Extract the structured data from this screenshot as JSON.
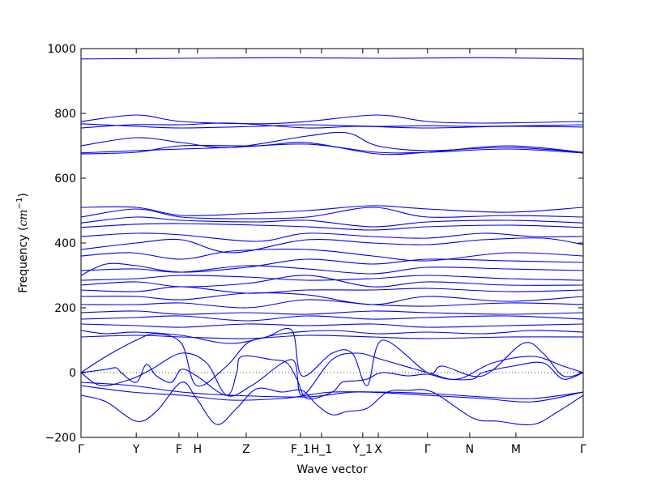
{
  "chart_data": {
    "type": "line",
    "xlabel": "Wave vector",
    "ylabel_prefix": "Frequency (",
    "ylabel_unit": "cm",
    "ylabel_exponent": "−1",
    "ylabel_suffix": ")",
    "ylim": [
      -200,
      1000
    ],
    "yticks": [
      "1000",
      "800",
      "600",
      "400",
      "200",
      "0",
      "−200"
    ],
    "ytick_values": [
      1000,
      800,
      600,
      400,
      200,
      0,
      -200
    ],
    "xlim": [
      0,
      1
    ],
    "xticks": [
      {
        "label": "Γ",
        "x": 0.0
      },
      {
        "label": "Y",
        "x": 0.11
      },
      {
        "label": "F",
        "x": 0.195
      },
      {
        "label": "H",
        "x": 0.232
      },
      {
        "label": "Z",
        "x": 0.329
      },
      {
        "label": "F_1",
        "x": 0.437
      },
      {
        "label": "H_1",
        "x": 0.479
      },
      {
        "label": "Y_1",
        "x": 0.561
      },
      {
        "label": "X",
        "x": 0.592
      },
      {
        "label": "Γ",
        "x": 0.69
      },
      {
        "label": "N",
        "x": 0.774
      },
      {
        "label": "M",
        "x": 0.866
      },
      {
        "label": "Γ",
        "x": 1.0
      }
    ],
    "zero_line": true,
    "line_color": "#0000ee",
    "series": [
      {
        "x": [
          0,
          0.2,
          0.4,
          0.6,
          0.8,
          1.0
        ],
        "values": [
          968,
          970,
          972,
          970,
          972,
          968
        ]
      },
      {
        "x": [
          0,
          0.11,
          0.2,
          0.35,
          0.45,
          0.59,
          0.69,
          0.8,
          1.0
        ],
        "values": [
          775,
          795,
          775,
          768,
          775,
          795,
          775,
          770,
          775
        ]
      },
      {
        "x": [
          0,
          0.11,
          0.2,
          0.35,
          0.45,
          0.59,
          0.69,
          0.8,
          1.0
        ],
        "values": [
          768,
          760,
          755,
          760,
          765,
          760,
          762,
          760,
          765
        ]
      },
      {
        "x": [
          0,
          0.1,
          0.2,
          0.3,
          0.45,
          0.55,
          0.69,
          0.85,
          1.0
        ],
        "values": [
          755,
          765,
          765,
          770,
          755,
          760,
          755,
          760,
          758
        ]
      },
      {
        "x": [
          0,
          0.11,
          0.2,
          0.3,
          0.45,
          0.53,
          0.59,
          0.69,
          0.85,
          1.0
        ],
        "values": [
          700,
          725,
          710,
          695,
          730,
          740,
          700,
          685,
          695,
          680
        ]
      },
      {
        "x": [
          0,
          0.11,
          0.2,
          0.3,
          0.45,
          0.59,
          0.69,
          0.85,
          1.0
        ],
        "values": [
          678,
          685,
          690,
          695,
          705,
          680,
          680,
          690,
          678
        ]
      },
      {
        "x": [
          0,
          0.11,
          0.2,
          0.35,
          0.45,
          0.59,
          0.69,
          0.85,
          1.0
        ],
        "values": [
          675,
          680,
          700,
          700,
          710,
          675,
          680,
          700,
          680
        ]
      },
      {
        "x": [
          0,
          0.11,
          0.2,
          0.32,
          0.45,
          0.58,
          0.69,
          0.85,
          1.0
        ],
        "values": [
          510,
          510,
          485,
          490,
          500,
          515,
          505,
          495,
          510
        ]
      },
      {
        "x": [
          0,
          0.11,
          0.2,
          0.32,
          0.45,
          0.58,
          0.69,
          0.85,
          1.0
        ],
        "values": [
          480,
          505,
          480,
          475,
          480,
          510,
          480,
          485,
          480
        ]
      },
      {
        "x": [
          0,
          0.11,
          0.2,
          0.35,
          0.45,
          0.58,
          0.69,
          0.85,
          1.0
        ],
        "values": [
          462,
          480,
          470,
          465,
          470,
          450,
          465,
          470,
          462
        ]
      },
      {
        "x": [
          0,
          0.11,
          0.2,
          0.35,
          0.45,
          0.58,
          0.69,
          0.85,
          1.0
        ],
        "values": [
          448,
          458,
          460,
          455,
          450,
          440,
          450,
          455,
          448
        ]
      },
      {
        "x": [
          0,
          0.11,
          0.2,
          0.35,
          0.45,
          0.58,
          0.69,
          0.8,
          0.9,
          1.0
        ],
        "values": [
          420,
          430,
          425,
          405,
          430,
          420,
          415,
          430,
          420,
          420
        ]
      },
      {
        "x": [
          0,
          0.11,
          0.2,
          0.3,
          0.45,
          0.58,
          0.69,
          0.8,
          0.92,
          1.0
        ],
        "values": [
          380,
          400,
          410,
          370,
          410,
          400,
          395,
          410,
          415,
          395
        ]
      },
      {
        "x": [
          0,
          0.1,
          0.2,
          0.3,
          0.45,
          0.58,
          0.69,
          0.85,
          1.0
        ],
        "values": [
          360,
          370,
          350,
          375,
          380,
          360,
          345,
          370,
          360
        ]
      },
      {
        "x": [
          0,
          0.05,
          0.11,
          0.2,
          0.33,
          0.45,
          0.58,
          0.69,
          0.85,
          1.0
        ],
        "values": [
          300,
          335,
          330,
          310,
          325,
          350,
          335,
          350,
          345,
          340
        ]
      },
      {
        "x": [
          0,
          0.11,
          0.2,
          0.33,
          0.45,
          0.58,
          0.69,
          0.85,
          1.0
        ],
        "values": [
          315,
          320,
          310,
          330,
          320,
          305,
          325,
          320,
          315
        ]
      },
      {
        "x": [
          0,
          0.11,
          0.2,
          0.33,
          0.45,
          0.58,
          0.69,
          0.85,
          1.0
        ],
        "values": [
          285,
          290,
          300,
          295,
          285,
          290,
          300,
          290,
          285
        ]
      },
      {
        "x": [
          0,
          0.11,
          0.2,
          0.33,
          0.45,
          0.58,
          0.69,
          0.85,
          1.0
        ],
        "values": [
          270,
          280,
          265,
          275,
          300,
          265,
          280,
          270,
          270
        ]
      },
      {
        "x": [
          0,
          0.11,
          0.2,
          0.33,
          0.45,
          0.58,
          0.69,
          0.85,
          1.0
        ],
        "values": [
          255,
          250,
          265,
          245,
          255,
          255,
          260,
          250,
          255
        ]
      },
      {
        "x": [
          0,
          0.11,
          0.2,
          0.33,
          0.45,
          0.58,
          0.69,
          0.85,
          1.0
        ],
        "values": [
          235,
          235,
          225,
          245,
          240,
          210,
          235,
          220,
          235
        ]
      },
      {
        "x": [
          0,
          0.11,
          0.2,
          0.33,
          0.45,
          0.58,
          0.69,
          0.85,
          1.0
        ],
        "values": [
          210,
          210,
          215,
          200,
          225,
          210,
          205,
          215,
          210
        ]
      },
      {
        "x": [
          0,
          0.11,
          0.2,
          0.33,
          0.45,
          0.58,
          0.69,
          0.85,
          1.0
        ],
        "values": [
          185,
          190,
          180,
          185,
          180,
          190,
          185,
          180,
          185
        ]
      },
      {
        "x": [
          0,
          0.11,
          0.2,
          0.33,
          0.45,
          0.58,
          0.69,
          0.85,
          1.0
        ],
        "values": [
          165,
          170,
          175,
          160,
          175,
          165,
          170,
          175,
          165
        ]
      },
      {
        "x": [
          0,
          0.11,
          0.2,
          0.33,
          0.45,
          0.58,
          0.69,
          0.85,
          1.0
        ],
        "values": [
          150,
          145,
          140,
          150,
          145,
          150,
          140,
          145,
          150
        ]
      },
      {
        "x": [
          0,
          0.05,
          0.11,
          0.2,
          0.3,
          0.4,
          0.5,
          0.59,
          0.69,
          0.8,
          0.9,
          1.0
        ],
        "values": [
          130,
          120,
          125,
          115,
          90,
          120,
          130,
          120,
          125,
          120,
          130,
          125
        ]
      },
      {
        "x": [
          0,
          0.11,
          0.2,
          0.33,
          0.45,
          0.58,
          0.69,
          0.85,
          1.0
        ],
        "values": [
          110,
          115,
          110,
          105,
          115,
          110,
          105,
          110,
          110
        ]
      },
      {
        "x": [
          0,
          0.05,
          0.11,
          0.15,
          0.2,
          0.23,
          0.29,
          0.33,
          0.37,
          0.42,
          0.44,
          0.5,
          0.54,
          0.57,
          0.6,
          0.69,
          0.72,
          0.8,
          0.88,
          0.92,
          0.96,
          1.0
        ],
        "values": [
          0,
          50,
          100,
          120,
          90,
          -40,
          20,
          90,
          110,
          130,
          -10,
          60,
          60,
          -40,
          100,
          0,
          20,
          -10,
          90,
          60,
          -10,
          0
        ]
      },
      {
        "x": [
          0,
          0.04,
          0.1,
          0.14,
          0.2,
          0.25,
          0.29,
          0.34,
          0.42,
          0.44,
          0.5,
          0.55,
          0.6,
          0.69,
          0.75,
          0.82,
          0.9,
          0.96,
          1.0
        ],
        "values": [
          0,
          -40,
          -20,
          10,
          60,
          30,
          -70,
          -40,
          40,
          -70,
          40,
          60,
          40,
          0,
          -20,
          30,
          50,
          20,
          0
        ]
      },
      {
        "x": [
          0,
          0.05,
          0.07,
          0.08,
          0.11,
          0.13,
          0.15,
          0.18,
          0.2,
          0.23,
          0.29,
          0.31,
          0.32,
          0.38,
          0.41,
          0.43,
          0.45,
          0.5,
          0.52,
          0.55,
          0.57,
          0.6,
          0.65,
          0.69,
          0.73,
          0.78,
          0.8,
          0.86,
          0.92,
          0.96,
          1.0
        ],
        "values": [
          0,
          10,
          15,
          0,
          -30,
          25,
          -10,
          -30,
          10,
          -10,
          -70,
          0,
          50,
          40,
          30,
          -20,
          -80,
          -60,
          -30,
          -25,
          -20,
          0,
          -10,
          -5,
          -20,
          -20,
          0,
          20,
          30,
          -20,
          0
        ]
      },
      {
        "x": [
          0,
          0.05,
          0.11,
          0.15,
          0.2,
          0.23,
          0.27,
          0.31,
          0.35,
          0.4,
          0.44,
          0.47,
          0.5,
          0.53,
          0.57,
          0.61,
          0.65,
          0.7,
          0.78,
          0.83,
          0.9,
          0.95,
          1.0
        ],
        "values": [
          -70,
          -90,
          -150,
          -120,
          -30,
          -80,
          -160,
          -110,
          -50,
          -60,
          -55,
          -100,
          -130,
          -120,
          -110,
          -60,
          -55,
          -60,
          -140,
          -150,
          -160,
          -120,
          -70
        ]
      },
      {
        "x": [
          0,
          0.1,
          0.2,
          0.3,
          0.45,
          0.55,
          0.69,
          0.8,
          0.9,
          1.0
        ],
        "values": [
          -30,
          -40,
          -60,
          -70,
          -75,
          -60,
          -70,
          -80,
          -90,
          -60
        ]
      },
      {
        "x": [
          0,
          0.1,
          0.2,
          0.3,
          0.4,
          0.45,
          0.5,
          0.6,
          0.7,
          0.8,
          0.9,
          1.0
        ],
        "values": [
          -40,
          -60,
          -70,
          -85,
          -80,
          -70,
          -60,
          -60,
          -65,
          -75,
          -80,
          -60
        ]
      }
    ]
  }
}
